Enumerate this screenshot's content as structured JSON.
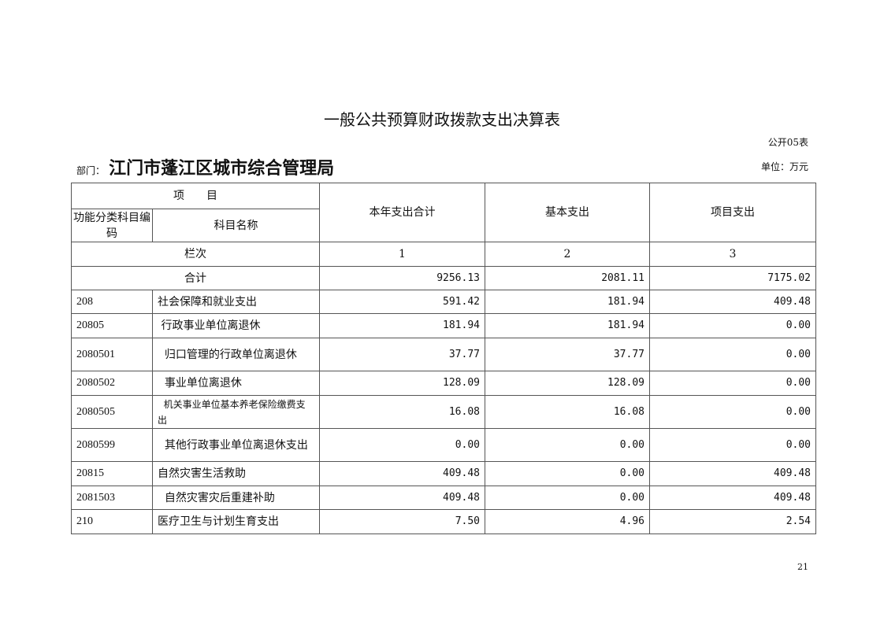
{
  "title": "一般公共预算财政拨款支出决算表",
  "form_no": "公开05表",
  "dept_label": "部门：",
  "dept_name": "江门市蓬江区城市综合管理局",
  "unit": "单位：万元",
  "header": {
    "item": "项　　目",
    "code": "功能分类科目编码",
    "name": "科目名称",
    "total": "本年支出合计",
    "basic": "基本支出",
    "project": "项目支出"
  },
  "column_numbers": {
    "label": "栏次",
    "c1": "1",
    "c2": "2",
    "c3": "3"
  },
  "sum_row": {
    "label": "合计",
    "total": "9256.13",
    "basic": "2081.11",
    "project": "7175.02"
  },
  "rows": [
    {
      "code": "208",
      "name": "社会保障和就业支出",
      "total": "591.42",
      "basic": "181.94",
      "project": "409.48"
    },
    {
      "code": "20805",
      "name": " 行政事业单位离退休",
      "total": "181.94",
      "basic": "181.94",
      "project": "0.00"
    },
    {
      "code": "2080501",
      "name": "  归口管理的行政单位离退休",
      "total": "37.77",
      "basic": "37.77",
      "project": "0.00"
    },
    {
      "code": "2080502",
      "name": "  事业单位离退休",
      "total": "128.09",
      "basic": "128.09",
      "project": "0.00"
    },
    {
      "code": "2080505",
      "name": "  机关事业单位基本养老保险缴费支出",
      "total": "16.08",
      "basic": "16.08",
      "project": "0.00"
    },
    {
      "code": "2080599",
      "name": "  其他行政事业单位离退休支出",
      "total": "0.00",
      "basic": "0.00",
      "project": "0.00"
    },
    {
      "code": "20815",
      "name": "自然灾害生活救助",
      "total": "409.48",
      "basic": "0.00",
      "project": "409.48"
    },
    {
      "code": "2081503",
      "name": "  自然灾害灾后重建补助",
      "total": "409.48",
      "basic": "0.00",
      "project": "409.48"
    },
    {
      "code": "210",
      "name": "医疗卫生与计划生育支出",
      "total": "7.50",
      "basic": "4.96",
      "project": "2.54"
    }
  ],
  "page_number": "21"
}
